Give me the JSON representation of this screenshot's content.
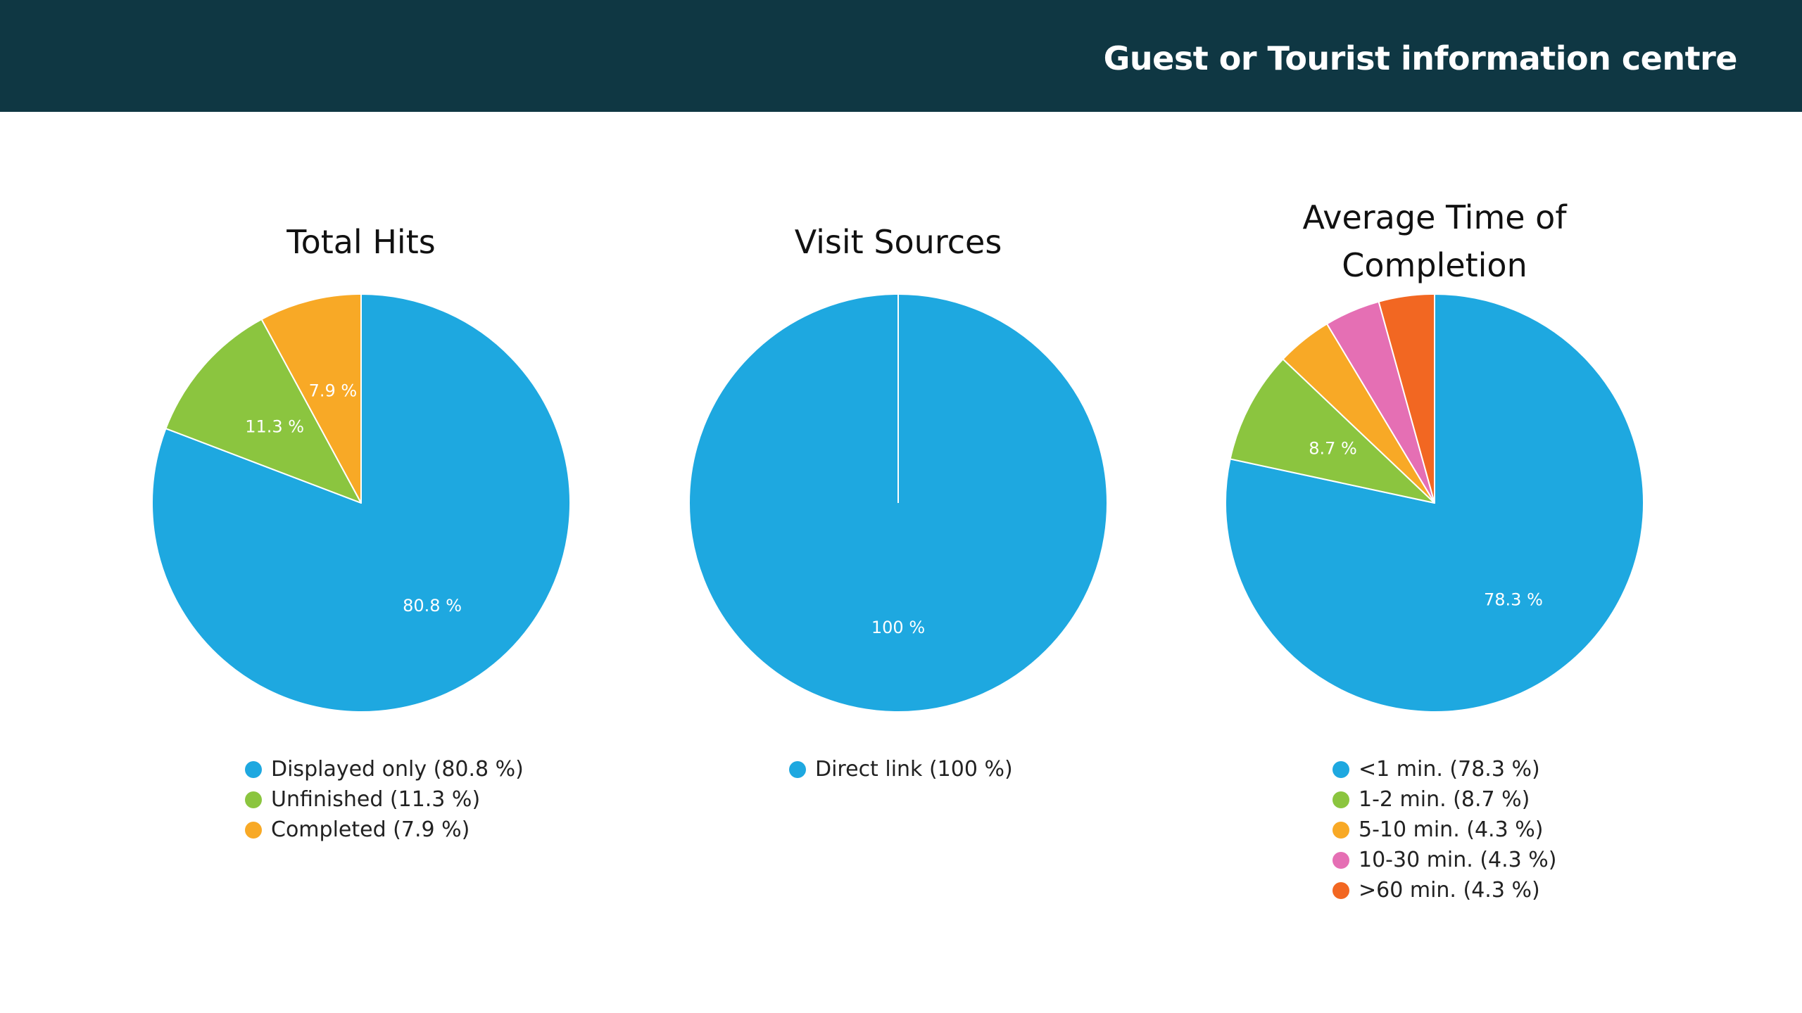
{
  "header": {
    "title": "Guest or Tourist information centre"
  },
  "colors": {
    "header_bg": "#0f3743",
    "blue": "#1ea8e0",
    "green": "#8bc53f",
    "orange": "#f8a926",
    "pink": "#e56fb4",
    "red_orange": "#f26722"
  },
  "chart_data": [
    {
      "type": "pie",
      "title": "Total Hits",
      "slices": [
        {
          "name": "Displayed only",
          "value": 80.8,
          "label": "80.8 %",
          "legend": "Displayed only (80.8 %)",
          "color": "#1ea8e0"
        },
        {
          "name": "Unfinished",
          "value": 11.3,
          "label": "11.3 %",
          "legend": "Unfinished (11.3 %)",
          "color": "#8bc53f"
        },
        {
          "name": "Completed",
          "value": 7.9,
          "label": "7.9 %",
          "legend": "Completed (7.9 %)",
          "color": "#f8a926"
        }
      ],
      "legend_position": "bottom"
    },
    {
      "type": "pie",
      "title": "Visit Sources",
      "slices": [
        {
          "name": "Direct link",
          "value": 100,
          "label": "100 %",
          "legend": "Direct link (100 %)",
          "color": "#1ea8e0"
        }
      ],
      "legend_position": "bottom"
    },
    {
      "type": "pie",
      "title": "Average Time of Completion",
      "title_lines": [
        "Average Time of",
        "Completion"
      ],
      "slices": [
        {
          "name": "<1 min.",
          "value": 78.3,
          "label": "78.3 %",
          "legend": "<1 min. (78.3 %)",
          "color": "#1ea8e0"
        },
        {
          "name": "1-2 min.",
          "value": 8.7,
          "label": "8.7 %",
          "legend": "1-2 min. (8.7 %)",
          "color": "#8bc53f"
        },
        {
          "name": "5-10 min.",
          "value": 4.3,
          "label": "",
          "legend": "5-10 min. (4.3 %)",
          "color": "#f8a926"
        },
        {
          "name": "10-30 min.",
          "value": 4.3,
          "label": "",
          "legend": "10-30 min. (4.3 %)",
          "color": "#e56fb4"
        },
        {
          "name": ">60 min.",
          "value": 4.3,
          "label": "",
          "legend": ">60 min. (4.3 %)",
          "color": "#f26722"
        }
      ],
      "legend_position": "bottom"
    }
  ]
}
